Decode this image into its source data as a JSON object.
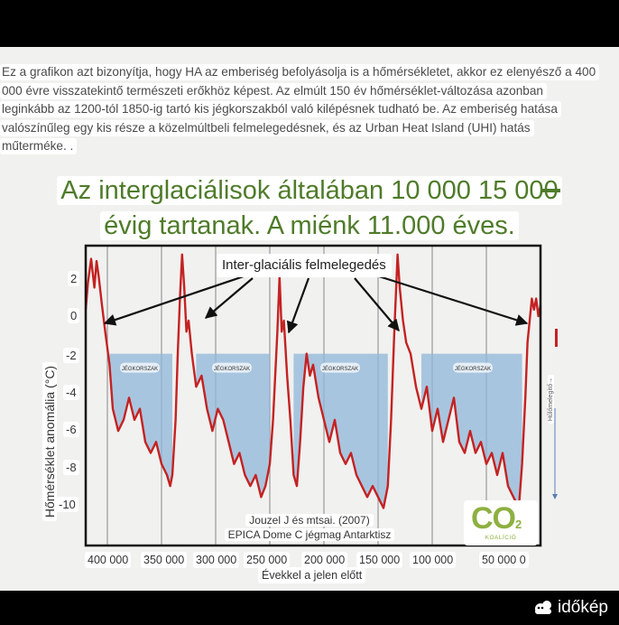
{
  "caption": {
    "lines": [
      "Ez a grafikon azt bizonyítja, hogy HA az emberiség befolyásolja is a hőmérsékletet, akkor ez elenyésző a 400",
      "000 évre visszatekintő természeti erőkhöz képest. Az elmúlt 150 év hőmérséklet-változása azonban",
      "leginkább az 1200-tól 1850-ig tartó kis jégkorszakból való kilépésnek tudható be. Az emberiség hatása",
      "valószínűleg egy kis része a közelmúltbeli felmelegedésnek, és az Urban Heat Island (UHI) hatás",
      "műterméke. ."
    ]
  },
  "headline": {
    "line1": "Az interglaciálisok általában 10 000 15 000",
    "line2": "évig tartanak. A miénk 11.000 éves."
  },
  "callout": "Inter-glaciális felmelegedés",
  "credit": {
    "line1": "Jouzel J és mtsai. (2007)",
    "line2": "EPICA Dome C jégmag Antarktisz"
  },
  "side_label": "Hűlőmelegítő→",
  "logo": {
    "mark": "CO",
    "sub": "2",
    "caption": "KOALÍCIÓ"
  },
  "brand": {
    "name": "időkép",
    "icon": "cloud-sun-icon"
  },
  "colors": {
    "series": "#c42222",
    "glacial_fill": "#8fb5d9",
    "headline": "#4f7b2a",
    "logo": "#8db040"
  },
  "chart_data": {
    "type": "line",
    "xlabel": "Évekkel a jelen előtt",
    "ylabel": "Hőmérséklet anomália (°C)",
    "xlim": [
      420000,
      0
    ],
    "ylim": [
      -10.7,
      2.9
    ],
    "yticks": [
      "2",
      "0",
      "-2",
      "-4",
      "-6",
      "-8",
      "-10"
    ],
    "xticks": [
      "400 000",
      "350 000",
      "300 000",
      "250 000",
      "200 000",
      "150 000",
      "100 000",
      "50 000 0"
    ],
    "glacial_threshold": -2,
    "glacial_label": "JÉGKORSZAK",
    "glacial_periods": [
      [
        400000,
        340000
      ],
      [
        320000,
        250000
      ],
      [
        230000,
        140000
      ],
      [
        110000,
        15000
      ]
    ],
    "series": [
      {
        "values": [
          [
            420000,
            0
          ],
          [
            418000,
            1.2
          ],
          [
            415000,
            2.3
          ],
          [
            412000,
            1.0
          ],
          [
            410000,
            2.2
          ],
          [
            408000,
            1.5
          ],
          [
            405000,
            0.2
          ],
          [
            402000,
            -1.0
          ],
          [
            398000,
            -2.5
          ],
          [
            395000,
            -4.5
          ],
          [
            390000,
            -5.5
          ],
          [
            385000,
            -5.0
          ],
          [
            380000,
            -4.0
          ],
          [
            375000,
            -5.0
          ],
          [
            370000,
            -4.5
          ],
          [
            365000,
            -6.0
          ],
          [
            360000,
            -6.5
          ],
          [
            355000,
            -6.0
          ],
          [
            350000,
            -7.0
          ],
          [
            345000,
            -7.5
          ],
          [
            342000,
            -8.0
          ],
          [
            340000,
            -7.5
          ],
          [
            337000,
            -5.0
          ],
          [
            335000,
            -2.0
          ],
          [
            333000,
            0.5
          ],
          [
            331000,
            2.5
          ],
          [
            329000,
            1.0
          ],
          [
            327000,
            -1.0
          ],
          [
            325000,
            -0.5
          ],
          [
            322000,
            -2.0
          ],
          [
            318000,
            -3.5
          ],
          [
            313000,
            -3.0
          ],
          [
            308000,
            -4.5
          ],
          [
            303000,
            -5.5
          ],
          [
            298000,
            -4.5
          ],
          [
            293000,
            -5.0
          ],
          [
            288000,
            -6.0
          ],
          [
            283000,
            -7.0
          ],
          [
            278000,
            -6.5
          ],
          [
            273000,
            -7.5
          ],
          [
            268000,
            -8.0
          ],
          [
            263000,
            -7.5
          ],
          [
            258000,
            -8.5
          ],
          [
            254000,
            -8.0
          ],
          [
            250000,
            -7.0
          ],
          [
            247000,
            -5.0
          ],
          [
            245000,
            -3.0
          ],
          [
            243000,
            -1.0
          ],
          [
            241000,
            1.5
          ],
          [
            239000,
            -1.0
          ],
          [
            237000,
            -0.5
          ],
          [
            234000,
            -3.0
          ],
          [
            231000,
            -5.0
          ],
          [
            228000,
            -7.5
          ],
          [
            225000,
            -8.0
          ],
          [
            222000,
            -6.0
          ],
          [
            219000,
            -3.5
          ],
          [
            216000,
            -2.0
          ],
          [
            213000,
            -3.0
          ],
          [
            210000,
            -2.5
          ],
          [
            205000,
            -4.0
          ],
          [
            200000,
            -5.0
          ],
          [
            195000,
            -6.0
          ],
          [
            190000,
            -5.0
          ],
          [
            185000,
            -6.5
          ],
          [
            180000,
            -7.0
          ],
          [
            175000,
            -6.5
          ],
          [
            170000,
            -7.5
          ],
          [
            165000,
            -8.0
          ],
          [
            160000,
            -8.5
          ],
          [
            155000,
            -8.0
          ],
          [
            150000,
            -8.5
          ],
          [
            145000,
            -9.0
          ],
          [
            141000,
            -8.0
          ],
          [
            138000,
            -5.0
          ],
          [
            135000,
            -1.0
          ],
          [
            132000,
            2.5
          ],
          [
            130000,
            1.0
          ],
          [
            127000,
            -0.5
          ],
          [
            124000,
            -1.5
          ],
          [
            120000,
            -2.0
          ],
          [
            115000,
            -3.5
          ],
          [
            110000,
            -4.5
          ],
          [
            105000,
            -3.5
          ],
          [
            100000,
            -5.5
          ],
          [
            95000,
            -4.5
          ],
          [
            90000,
            -6.0
          ],
          [
            85000,
            -5.0
          ],
          [
            80000,
            -4.0
          ],
          [
            75000,
            -6.0
          ],
          [
            70000,
            -6.5
          ],
          [
            65000,
            -5.5
          ],
          [
            60000,
            -6.5
          ],
          [
            55000,
            -6.0
          ],
          [
            50000,
            -7.0
          ],
          [
            45000,
            -6.5
          ],
          [
            40000,
            -7.5
          ],
          [
            35000,
            -6.5
          ],
          [
            30000,
            -8.0
          ],
          [
            25000,
            -8.5
          ],
          [
            20000,
            -9.0
          ],
          [
            17000,
            -7.0
          ],
          [
            14000,
            -4.0
          ],
          [
            12000,
            -1.5
          ],
          [
            10000,
            -0.5
          ],
          [
            8000,
            0.5
          ],
          [
            6000,
            0.0
          ],
          [
            4000,
            0.5
          ],
          [
            2000,
            -0.3
          ],
          [
            0,
            0.2
          ]
        ]
      }
    ]
  }
}
